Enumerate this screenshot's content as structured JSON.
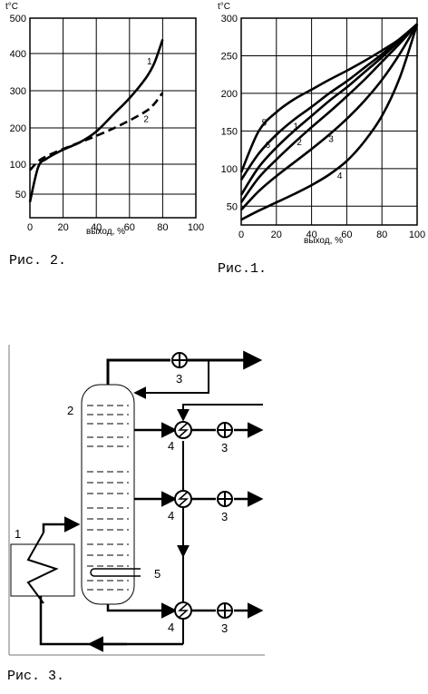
{
  "chart_data": [
    {
      "type": "line",
      "caption": "Рис. 2.",
      "unit": "t°C",
      "xlabel": "выход, %",
      "xlim": [
        0,
        100
      ],
      "ylim": [
        20,
        500
      ],
      "x_ticks": [
        "0",
        "20",
        "40",
        "60",
        "80",
        "100"
      ],
      "y_ticks": [
        "50",
        "100",
        "200",
        "300",
        "400",
        "500"
      ],
      "grid": true,
      "series": [
        {
          "name": "1",
          "style": "solid",
          "x": [
            0,
            5,
            10,
            20,
            30,
            40,
            50,
            60,
            70,
            75,
            80
          ],
          "y": [
            40,
            95,
            115,
            140,
            160,
            190,
            235,
            280,
            335,
            375,
            440
          ]
        },
        {
          "name": "2",
          "style": "dashed",
          "x": [
            0,
            5,
            10,
            20,
            30,
            40,
            50,
            60,
            70,
            75,
            80
          ],
          "y": [
            90,
            108,
            122,
            142,
            160,
            178,
            198,
            220,
            245,
            265,
            295
          ]
        }
      ]
    },
    {
      "type": "line",
      "caption": "Рис.1.",
      "unit": "t°C",
      "xlabel": "выход, %",
      "xlim": [
        0,
        100
      ],
      "ylim": [
        25,
        300
      ],
      "x_ticks": [
        "0",
        "20",
        "40",
        "60",
        "80",
        "100"
      ],
      "y_ticks": [
        "50",
        "100",
        "150",
        "200",
        "250",
        "300"
      ],
      "grid": true,
      "series": [
        {
          "name": "5",
          "style": "solid",
          "x": [
            0,
            10,
            20,
            30,
            40,
            50,
            60,
            70,
            80,
            90,
            100
          ],
          "y": [
            95,
            150,
            175,
            192,
            205,
            218,
            230,
            243,
            257,
            272,
            292
          ]
        },
        {
          "name": "6",
          "style": "solid",
          "x": [
            0,
            10,
            20,
            30,
            40,
            50,
            60,
            70,
            80,
            90,
            100
          ],
          "y": [
            85,
            120,
            145,
            165,
            182,
            200,
            216,
            234,
            252,
            272,
            292
          ]
        },
        {
          "name": "1",
          "style": "solid",
          "x": [
            0,
            10,
            20,
            30,
            40,
            50,
            60,
            70,
            80,
            90,
            100
          ],
          "y": [
            65,
            102,
            128,
            150,
            170,
            190,
            208,
            228,
            248,
            270,
            292
          ]
        },
        {
          "name": "2",
          "style": "solid",
          "x": [
            0,
            10,
            20,
            30,
            40,
            50,
            60,
            70,
            80,
            90,
            100
          ],
          "y": [
            55,
            88,
            112,
            134,
            155,
            175,
            196,
            218,
            242,
            266,
            292
          ]
        },
        {
          "name": "3",
          "style": "solid",
          "x": [
            0,
            10,
            20,
            30,
            40,
            50,
            60,
            70,
            80,
            90,
            100
          ],
          "y": [
            45,
            70,
            90,
            108,
            126,
            145,
            166,
            190,
            218,
            252,
            292
          ]
        },
        {
          "name": "4",
          "style": "solid",
          "x": [
            0,
            10,
            20,
            30,
            40,
            50,
            60,
            70,
            80,
            90,
            100
          ],
          "y": [
            32,
            44,
            55,
            66,
            78,
            92,
            110,
            136,
            170,
            220,
            292
          ]
        }
      ]
    }
  ],
  "diagram": {
    "caption": "Рис. 3.",
    "labels": {
      "furnace": "1",
      "column": "2",
      "pump_top": "3",
      "pump_1": "3",
      "pump_2": "3",
      "pump_bottom": "3",
      "exchanger_1": "4",
      "exchanger_2": "4",
      "exchanger_bottom": "4",
      "steam_coil": "5"
    }
  }
}
